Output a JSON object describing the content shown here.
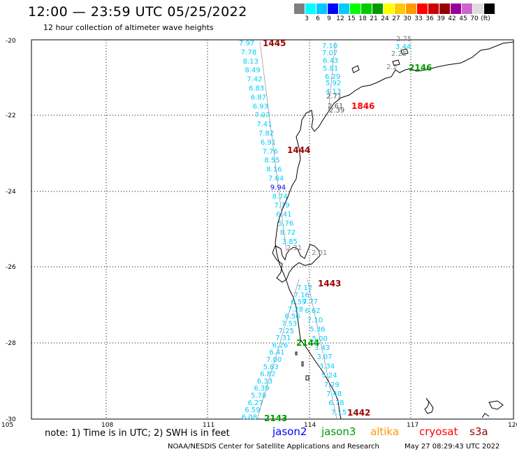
{
  "title": "12:00 — 23:59 UTC 05/25/2022",
  "subtitle": "12 hour collection of altimeter wave heights",
  "colorbar": {
    "unit": "(ft)",
    "colors": [
      "#808080",
      "#00ffff",
      "#00c8ff",
      "#0000ff",
      "#00ccff",
      "#00ff00",
      "#00cc00",
      "#009900",
      "#ffff00",
      "#ffc800",
      "#ff9900",
      "#ff0000",
      "#cc0000",
      "#990000",
      "#990099",
      "#cc66cc",
      "#dddddd",
      "#000000"
    ],
    "labels": [
      "3",
      "6",
      "9",
      "12",
      "15",
      "18",
      "21",
      "24",
      "27",
      "30",
      "33",
      "36",
      "39",
      "42",
      "45",
      "70"
    ]
  },
  "axes": {
    "lat_labels": [
      "-20",
      "-22",
      "-24",
      "-26",
      "-28",
      "-30"
    ],
    "lon_labels": [
      "105",
      "108",
      "111",
      "114",
      "117",
      "120"
    ]
  },
  "passes": [
    {
      "label": "1445",
      "color": "#990000"
    },
    {
      "label": "2146",
      "color": "#009900"
    },
    {
      "label": "1846",
      "color": "#ff0000"
    },
    {
      "label": "1444",
      "color": "#990000"
    },
    {
      "label": "1443",
      "color": "#990000"
    },
    {
      "label": "2144",
      "color": "#009900"
    },
    {
      "label": "2143",
      "color": "#009900"
    },
    {
      "label": "1442",
      "color": "#990000"
    }
  ],
  "track_left_values": [
    "7.97",
    "7.78",
    "8.13",
    "8.49",
    "7.42",
    "6.83",
    "6.87",
    "6.93",
    "7.07",
    "7.41",
    "7.82",
    "6.91",
    "7.76",
    "8.55",
    "8.16",
    "7.64",
    "9.94",
    "8.74",
    "7.79",
    "6.41",
    "5.76",
    "8.72",
    "3.85"
  ],
  "track_right_values": [
    "7.10",
    "7.07",
    "6.43",
    "5.81",
    "6.29",
    "5.92",
    "4.13",
    "2.71",
    "2.61",
    "2.39"
  ],
  "gray_values": [
    "2.75",
    "3.44",
    "2.25",
    "2.2",
    "2.31",
    "2.01"
  ],
  "track_south_a": [
    "7.12",
    "7.16",
    "6.59",
    "7.28",
    "6.56",
    "7.53",
    "7.25",
    "7.31",
    "6.26",
    "6.41",
    "7.00",
    "5.83",
    "6.82",
    "6.33",
    "6.39",
    "5.78",
    "6.27",
    "6.59",
    "6.08"
  ],
  "track_south_b": [
    "7.77",
    "6.62",
    "7.10",
    "5.36",
    "5.00",
    "3.43",
    "3.07",
    "3.34",
    "5.24",
    "7.29",
    "7.48",
    "6.78",
    "7.15"
  ],
  "note": "note: 1) Time is in UTC; 2) SWH is in feet",
  "legend": [
    {
      "label": "jason2",
      "color": "#0000ff"
    },
    {
      "label": "jason3",
      "color": "#009900"
    },
    {
      "label": "altika",
      "color": "#ff9900"
    },
    {
      "label": "cryosat",
      "color": "#ff0000"
    },
    {
      "label": "s3a",
      "color": "#990000"
    }
  ],
  "credit": "NOAA/NESDIS Center for Satellite Applications and Research",
  "timestamp": "May 27 08:29:43 UTC 2022"
}
